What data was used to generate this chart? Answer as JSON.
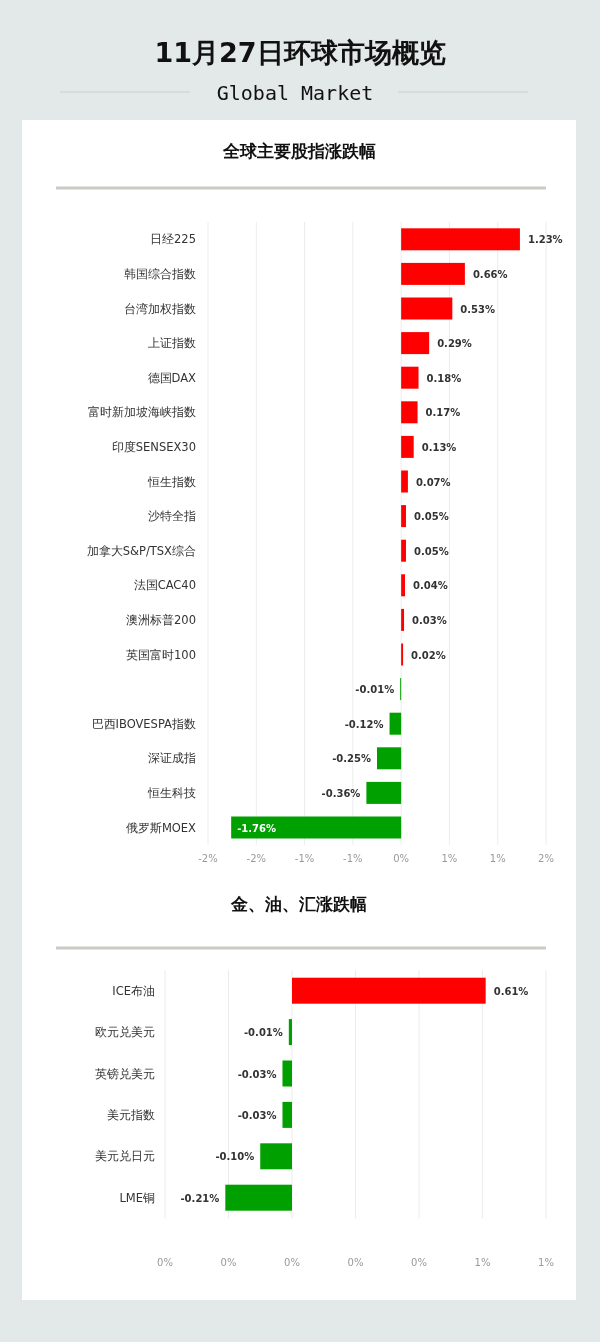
{
  "chart_data": [
    {
      "type": "bar",
      "orientation": "horizontal",
      "title": "全球主要股指涨跌幅",
      "annotations": [
        "11月27日环球市场概览",
        "Global Market"
      ],
      "categories": [
        "日经225",
        "韩国综合指数",
        "台湾加权指数",
        "上证指数",
        "德国DAX",
        "富时新加坡海峡指数",
        "印度SENSEX30",
        "恒生指数",
        "沙特全指",
        "加拿大S&P/TSX综合",
        "法国CAC40",
        "澳洲标普200",
        "英国富时100",
        null,
        "巴西IBOVESPA指数",
        "深证成指",
        "恒生科技",
        "俄罗斯MOEX"
      ],
      "values": [
        1.23,
        0.66,
        0.53,
        0.29,
        0.18,
        0.17,
        0.13,
        0.07,
        0.05,
        0.05,
        0.04,
        0.03,
        0.02,
        -0.01,
        -0.12,
        -0.25,
        -0.36,
        -1.76
      ],
      "value_labels": [
        "1.23%",
        "0.66%",
        "0.53%",
        "0.29%",
        "0.18%",
        "0.17%",
        "0.13%",
        "0.07%",
        "0.05%",
        "0.05%",
        "0.04%",
        "0.03%",
        "0.02%",
        "-0.01%",
        "-0.12%",
        "-0.25%",
        "-0.36%",
        "-1.76%"
      ],
      "colors": [
        "#ff0000",
        "#ff0000",
        "#ff0000",
        "#ff0000",
        "#ff0000",
        "#ff0000",
        "#ff0000",
        "#ff0000",
        "#ff0000",
        "#ff0000",
        "#ff0000",
        "#ff0000",
        "#ff0000",
        "#00a000",
        "#00a000",
        "#00a000",
        "#00a000",
        "#00a000"
      ],
      "xlim": [
        -2,
        1.5
      ],
      "xticks": [
        {
          "value": -2,
          "label": "-2%"
        },
        {
          "value": -1.5,
          "label": "-2%"
        },
        {
          "value": -1,
          "label": "-1%"
        },
        {
          "value": -0.5,
          "label": "-1%"
        },
        {
          "value": 0,
          "label": "0%"
        },
        {
          "value": 0.5,
          "label": "1%"
        },
        {
          "value": 1,
          "label": "1%"
        },
        {
          "value": 1.5,
          "label": "2%"
        }
      ],
      "grid": "x"
    },
    {
      "type": "bar",
      "orientation": "horizontal",
      "title": "金、油、汇涨跌幅",
      "categories": [
        "ICE布油",
        "欧元兑美元",
        "英镑兑美元",
        "美元指数",
        "美元兑日元",
        "LME铜"
      ],
      "values": [
        0.61,
        -0.01,
        -0.03,
        -0.03,
        -0.1,
        -0.21
      ],
      "value_labels": [
        "0.61%",
        "-0.01%",
        "-0.03%",
        "-0.03%",
        "-0.10%",
        "-0.21%"
      ],
      "colors": [
        "#ff0000",
        "#00a000",
        "#00a000",
        "#00a000",
        "#00a000",
        "#00a000"
      ],
      "xlim": [
        -0.4,
        0.8
      ],
      "xticks": [
        {
          "value": -0.4,
          "label": "0%"
        },
        {
          "value": -0.2,
          "label": "0%"
        },
        {
          "value": 0,
          "label": "0%"
        },
        {
          "value": 0.2,
          "label": "0%"
        },
        {
          "value": 0.4,
          "label": "0%"
        },
        {
          "value": 0.6,
          "label": "1%"
        },
        {
          "value": 0.8,
          "label": "1%"
        }
      ],
      "grid": "x"
    }
  ]
}
